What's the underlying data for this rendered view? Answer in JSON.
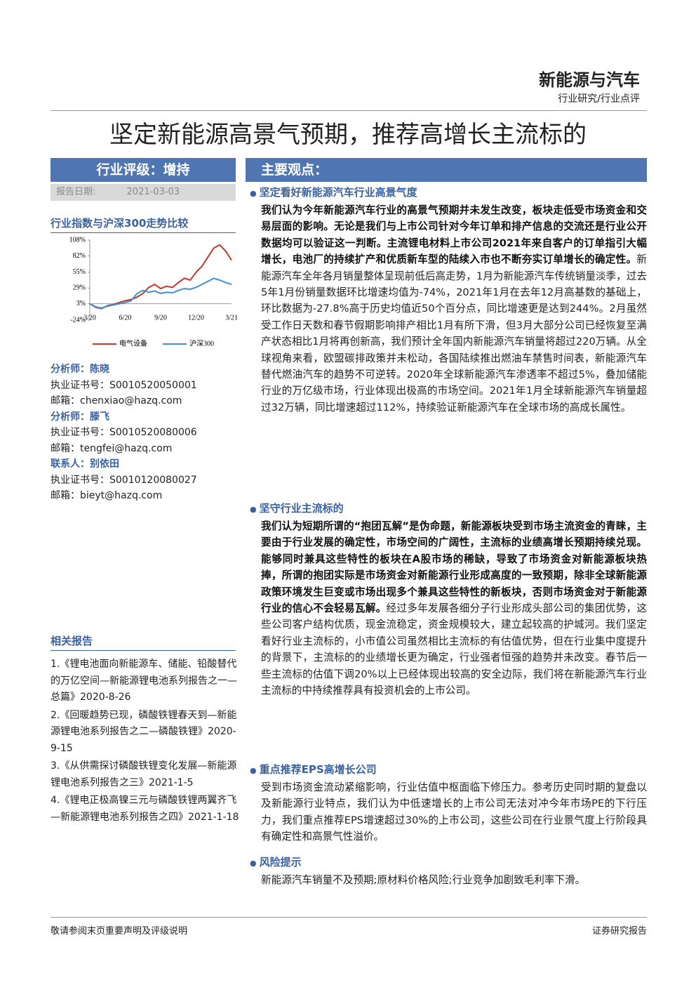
{
  "header": {
    "sector": "新能源与汽车",
    "category": "行业研究/行业点评"
  },
  "title": "坚定新能源高景气预期，推荐高增长主流标的",
  "rating": "行业评级：增持",
  "report_date": {
    "label": "报告日期:",
    "value": "2021-03-03"
  },
  "chart_data": {
    "type": "line",
    "title": "行业指数与沪深300走势比较",
    "categories": [
      "3/20",
      null,
      null,
      null,
      null,
      null,
      "6/20",
      null,
      null,
      null,
      null,
      null,
      "9/20",
      null,
      null,
      null,
      null,
      null,
      "12/20",
      null,
      null,
      null,
      null,
      null,
      "3/21"
    ],
    "series": [
      {
        "name": "电气设备",
        "color": "#c0392b",
        "values": [
          3,
          -3,
          -5,
          0,
          2,
          5,
          8,
          10,
          14,
          20,
          30,
          35,
          28,
          32,
          30,
          38,
          45,
          42,
          55,
          65,
          80,
          95,
          100,
          90,
          75
        ]
      },
      {
        "name": "沪深300",
        "color": "#3f8fd2",
        "values": [
          3,
          -2,
          -4,
          -1,
          1,
          3,
          5,
          8,
          20,
          25,
          22,
          24,
          20,
          22,
          21,
          25,
          28,
          27,
          30,
          35,
          40,
          45,
          42,
          38,
          35
        ]
      }
    ],
    "ylim": [
      -24,
      108
    ],
    "yticks": [
      {
        "value": 108,
        "label": "108%"
      },
      {
        "value": 82,
        "label": "82%"
      },
      {
        "value": 55,
        "label": "55%"
      },
      {
        "value": 29,
        "label": "29%"
      },
      {
        "value": 3,
        "label": "3%"
      },
      {
        "value": -24,
        "label": "-24%"
      }
    ],
    "legend": "bottom"
  },
  "analysts": [
    {
      "title": "分析师：陈晓",
      "license": "执业证书号：S0010520050001",
      "email": "邮箱：chenxiao@hazq.com"
    },
    {
      "title": "分析师：滕飞",
      "license": "执业证书号：S0010520080006",
      "email": "邮箱：tengfei@hazq.com"
    },
    {
      "title": "联系人：别依田",
      "license": "执业证书号：S0010120080027",
      "email": "邮箱：bieyt@hazq.com"
    }
  ],
  "related_reports": {
    "heading": "相关报告",
    "items": [
      "1.《锂电池面向新能源车、储能、铅酸替代的万亿空间—新能源锂电池系列报告之一—总篇》2020-8-26",
      "2.《回暖趋势已现，磷酸铁锂春天到—新能源锂电池系列报告之二—磷酸铁锂》2020-9-15",
      "3.《从供需探讨磷酸铁锂变化发展—新能源锂电池系列报告之三》2021-1-5",
      "4.《锂电正极高镍三元与磷酸铁锂两翼齐飞—新能源锂电池系列报告之四》2021-1-18"
    ]
  },
  "main_points": {
    "heading": "主要观点：",
    "sections": [
      {
        "heading": "坚定看好新能源汽车行业高景气度",
        "bold": "我们认为今年新能源汽车行业的高景气预期并未发生改变，板块走低受市场资金和交易层面的影响。无论是我们与上市公司针对今年订单和排产信息的交流还是行业公开数据均可以验证这一判断。主流锂电材料上市公司2021年来自客户的订单指引大幅增长，电池厂的持续扩产和优质新车型的陆续入市也不断夯实订单增长的确定性。",
        "text": "新能源汽车全年各月销量整体呈现前低后高走势，1月为新能源汽车传统销量淡季，过去5年1月份销量数据环比增速均值为-74%，2021年1月在去年12月高基数的基础上，环比数据为-27.8%高于历史均值近50个百分点，同比增速更是达到244%。2月虽然受工作日天数和春节假期影响排产相比1月有所下滑，但3月大部分公司已经恢复至满产状态相比1月将再创新高，我们预计全年国内新能源汽车销量将超过220万辆。从全球视角来看，欧盟碳排政策并未松动，各国陆续推出燃油车禁售时间表，新能源汽车替代燃油汽车的趋势不可逆转。2020年全球新能源汽车渗透率不超过5%，叠加储能行业的万亿级市场，行业体现出极高的市场空间。2021年1月全球新能源汽车销量超过32万辆，同比增速超过112%，持续验证新能源汽车在全球市场的高成长属性。"
      },
      {
        "heading": "坚守行业主流标的",
        "bold": "我们认为短期所谓的“抱团瓦解”是伪命题，新能源板块受到市场主流资金的青睐，主要由于行业发展的确定性，市场空间的广阔性，主流标的业绩高增长预期持续兑现。能够同时兼具这些特性的板块在A股市场的稀缺，导致了市场资金对新能源板块热捧，所谓的抱团实际是市场资金对新能源行业形成高度的一致预期，除非全球新能源政策环境发生巨变或市场出现多个兼具这些特性的新板块，否则市场资金对于新能源行业的信心不会轻易瓦解。",
        "text": "经过多年发展各细分子行业形成头部公司的集团优势，这些公司客户结构优质，现金流稳定，资金规模较大，建立起较高的护城河。我们坚定看好行业主流标的，小市值公司虽然相比主流标的有估值优势，但在行业集中度提升的背景下，主流标的的业绩增长更为确定，行业强者恒强的趋势并未改变。春节后一些主流标的估值下调20%以上已经体现出较高的安全边际，我们将在新能源汽车行业主流标的中持续推荐具有投资机会的上市公司。"
      },
      {
        "heading": "重点推荐EPS高增长公司",
        "text": "受到市场资金流动紧缩影响，行业估值中枢面临下修压力。参考历史同时期的复盘以及新能源行业特点，我们认为中低速增长的上市公司无法对冲今年市场PE的下行压力，我们重点推荐EPS增速超过30%的上市公司，这些公司在行业景气度上行阶段具有确定性和高景气性溢价。"
      },
      {
        "heading": "风险提示",
        "text": "新能源汽车销量不及预期;原材料价格风险;行业竞争加剧致毛利率下滑。"
      }
    ]
  },
  "footer": {
    "left": "敬请参阅末页重要声明及评级说明",
    "right": "证券研究报告"
  }
}
